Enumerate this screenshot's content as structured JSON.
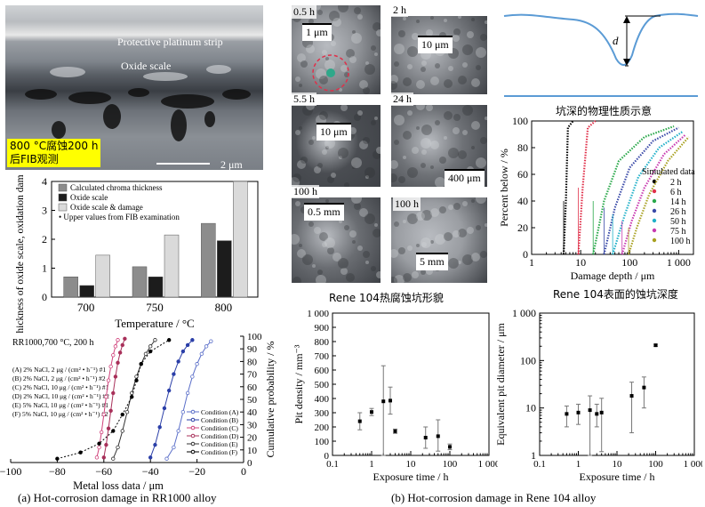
{
  "fib": {
    "strip_label": "Protective platinum strip",
    "oxide_label": "Oxide scale",
    "note_line1": "800 °C腐蚀200 h",
    "note_line2": "后FIB观测",
    "scalebar": "2 μm"
  },
  "sem": [
    {
      "time": "0.5 h",
      "scale": "1 μm"
    },
    {
      "time": "2 h",
      "scale": "10 μm"
    },
    {
      "time": "5.5 h",
      "scale": "10 μm"
    },
    {
      "time": "24 h",
      "scale": "400 μm"
    },
    {
      "time": "100 h",
      "scale": "0.5 mm"
    },
    {
      "time": "100 h",
      "scale": "5 mm"
    }
  ],
  "pit_schematic": {
    "depth_symbol": "d",
    "caption": "坑深的物理性质示意"
  },
  "captions": {
    "morphology": "Rene 104热腐蚀坑形貌",
    "depth": "Rene 104表面的蚀坑深度",
    "a": "(a) Hot-corrosion damage in RR1000 alloy",
    "b": "(b) Hot-corrosion damage in Rene 104 alloy"
  },
  "charts": {
    "oxide_bar": {
      "type": "bar",
      "categories": [
        "700",
        "750",
        "800"
      ],
      "series": [
        {
          "name": "Calculated chroma thickness",
          "values": [
            0.7,
            1.05,
            2.55
          ],
          "color": "#8c8c8c"
        },
        {
          "name": "Oxide scale",
          "values": [
            0.4,
            0.7,
            1.95
          ],
          "color": "#1c1c1c"
        },
        {
          "name": "Oxide scale & damage",
          "values": [
            1.45,
            2.15,
            4.0
          ],
          "color": "#dadada"
        }
      ],
      "legend_note": "• Upper values from FIB examination",
      "xlabel": "Temperature / °C",
      "ylabel": "Thickness of oxide scale, oxidation damage / μm",
      "ylim": [
        0,
        4
      ],
      "yticks": [
        "0",
        "1",
        "2",
        "3",
        "4"
      ]
    },
    "metal_loss": {
      "type": "line",
      "title": "RR1000,700 °C, 200 h",
      "conditions_text": [
        "(A) 2% NaCl, 2 μg / (cm² • h⁻¹) #1",
        "(B) 2% NaCl, 2 μg / (cm² • h⁻¹) #2",
        "(C) 2% NaCl, 10 μg / (cm² • h⁻¹) #1",
        "(D) 2% NaCl, 10 μg / (cm² • h⁻¹) #2",
        "(E) 5% NaCl, 10 μg / (cm² • h⁻¹) #1",
        "(F) 5% NaCl, 10 μg / (cm² • h⁻¹) #2"
      ],
      "series": [
        {
          "name": "Condition (A)",
          "color": "#5b6fc9",
          "marker": "o",
          "x": [
            -33,
            -30,
            -28,
            -26,
            -24,
            -22,
            -20,
            -18,
            -16,
            -14
          ],
          "y": [
            3,
            12,
            25,
            40,
            55,
            68,
            78,
            86,
            92,
            96
          ]
        },
        {
          "name": "Condition (B)",
          "color": "#2b3fa8",
          "marker": "o",
          "x": [
            -40,
            -38,
            -36,
            -34,
            -32,
            -30,
            -28,
            -26,
            -24,
            -22
          ],
          "y": [
            4,
            14,
            28,
            43,
            57,
            70,
            80,
            88,
            93,
            97
          ]
        },
        {
          "name": "Condition (C)",
          "color": "#d0407a",
          "marker": "o",
          "x": [
            -63,
            -62,
            -61,
            -60,
            -59,
            -58,
            -57,
            -56,
            -55,
            -54
          ],
          "y": [
            4,
            12,
            24,
            38,
            52,
            65,
            76,
            85,
            92,
            97
          ]
        },
        {
          "name": "Condition (D)",
          "color": "#a8305a",
          "marker": "o",
          "x": [
            -60,
            -59,
            -58,
            -57,
            -56,
            -55,
            -54,
            -53,
            -52,
            -51
          ],
          "y": [
            4,
            14,
            27,
            41,
            55,
            68,
            79,
            87,
            93,
            98
          ]
        },
        {
          "name": "Condition (E)",
          "color": "#333333",
          "marker": "o",
          "x": [
            -56,
            -54,
            -52,
            -50,
            -48,
            -46,
            -44,
            -42,
            -40,
            -38
          ],
          "y": [
            3,
            12,
            25,
            40,
            55,
            68,
            78,
            86,
            92,
            97
          ]
        },
        {
          "name": "Condition (F)",
          "color": "#000000",
          "marker": "o",
          "x": [
            -80,
            -70,
            -62,
            -56,
            -52,
            -48,
            -46,
            -44,
            -40,
            -32
          ],
          "y": [
            3,
            8,
            15,
            25,
            38,
            52,
            65,
            78,
            88,
            97
          ]
        }
      ],
      "xlabel": "Metal loss data / μm",
      "ylabel": "Cumulative probability / %",
      "xlim": [
        -100,
        0
      ],
      "ylim": [
        0,
        100
      ],
      "xticks": [
        "−100",
        "−80",
        "−60",
        "−40",
        "−20",
        "0"
      ],
      "yticks": [
        "0",
        "10",
        "20",
        "30",
        "40",
        "50",
        "60",
        "70",
        "80",
        "90",
        "100"
      ]
    },
    "pit_depth": {
      "type": "line",
      "legend_title": "Simulated data",
      "series": [
        {
          "name": "2 h",
          "color": "#000000",
          "x": [
            4.5,
            5,
            5.5,
            7
          ],
          "y": [
            0,
            40,
            95,
            100
          ]
        },
        {
          "name": "6 h",
          "color": "#e0304a",
          "x": [
            9,
            11,
            14,
            20
          ],
          "y": [
            0,
            50,
            95,
            100
          ]
        },
        {
          "name": "14 h",
          "color": "#29a84a",
          "x": [
            18,
            30,
            60,
            200,
            800
          ],
          "y": [
            0,
            40,
            70,
            88,
            96
          ]
        },
        {
          "name": "26 h",
          "color": "#3a4aa8",
          "x": [
            30,
            50,
            100,
            300,
            1000
          ],
          "y": [
            0,
            35,
            65,
            85,
            95
          ]
        },
        {
          "name": "50 h",
          "color": "#1fb0c8",
          "x": [
            45,
            80,
            150,
            400,
            1200
          ],
          "y": [
            0,
            30,
            58,
            80,
            92
          ]
        },
        {
          "name": "75 h",
          "color": "#c83ab0",
          "x": [
            70,
            110,
            200,
            500,
            1400
          ],
          "y": [
            0,
            25,
            50,
            75,
            90
          ]
        },
        {
          "name": "100 h",
          "color": "#a8a020",
          "x": [
            95,
            140,
            250,
            600,
            1600
          ],
          "y": [
            0,
            20,
            45,
            70,
            88
          ]
        }
      ],
      "xlabel": "Damage depth / μm",
      "ylabel": "Percent below / %",
      "xscale": "log",
      "xlim": [
        1,
        2000
      ],
      "ylim": [
        0,
        100
      ],
      "xticks": [
        "1",
        "10",
        "100",
        "1 000"
      ],
      "yticks": [
        "0",
        "20",
        "40",
        "60",
        "80",
        "100"
      ]
    },
    "pit_density": {
      "type": "scatter",
      "points": [
        {
          "x": 0.5,
          "y": 240,
          "lo": 180,
          "hi": 300
        },
        {
          "x": 1,
          "y": 305,
          "lo": 280,
          "hi": 330
        },
        {
          "x": 2,
          "y": 380,
          "lo": 0,
          "hi": 630
        },
        {
          "x": 3,
          "y": 385,
          "lo": 290,
          "hi": 480
        },
        {
          "x": 4,
          "y": 170,
          "lo": 155,
          "hi": 185
        },
        {
          "x": 24,
          "y": 125,
          "lo": 50,
          "hi": 200
        },
        {
          "x": 50,
          "y": 135,
          "lo": 30,
          "hi": 250
        },
        {
          "x": 100,
          "y": 60,
          "lo": 40,
          "hi": 80
        }
      ],
      "xlabel": "Exposure time / h",
      "ylabel": "Pit density / mm⁻³",
      "xscale": "log",
      "xlim": [
        0.1,
        1000
      ],
      "ylim": [
        0,
        1000
      ],
      "xticks": [
        "0.1",
        "1",
        "10",
        "100",
        "1 000"
      ],
      "yticks": [
        "0",
        "100",
        "200",
        "300",
        "400",
        "500",
        "600",
        "700",
        "800",
        "900",
        "1 000"
      ]
    },
    "pit_diameter": {
      "type": "scatter",
      "points": [
        {
          "x": 0.5,
          "y": 7.5,
          "lo": 4,
          "hi": 11
        },
        {
          "x": 1,
          "y": 8,
          "lo": 4.5,
          "hi": 12
        },
        {
          "x": 2,
          "y": 9,
          "lo": 1.0,
          "hi": 18
        },
        {
          "x": 3,
          "y": 7.5,
          "lo": 4,
          "hi": 12
        },
        {
          "x": 4,
          "y": 8,
          "lo": 1.2,
          "hi": 16
        },
        {
          "x": 24,
          "y": 18,
          "lo": 3,
          "hi": 35
        },
        {
          "x": 50,
          "y": 27,
          "lo": 10,
          "hi": 45
        },
        {
          "x": 100,
          "y": 210,
          "lo": 200,
          "hi": 220
        }
      ],
      "xlabel": "Exposure time / h",
      "ylabel": "Equivalent pit diameter / μm",
      "xscale": "log",
      "yscale": "log",
      "xlim": [
        0.1,
        1000
      ],
      "ylim": [
        1,
        1000
      ],
      "xticks": [
        "0.1",
        "1",
        "10",
        "100",
        "1 000"
      ],
      "yticks": [
        "1",
        "10",
        "100",
        "1 000"
      ]
    }
  }
}
